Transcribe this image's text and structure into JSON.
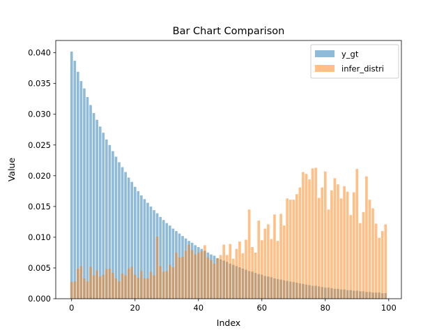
{
  "chart_data": {
    "type": "bar",
    "title": "Bar Chart Comparison",
    "xlabel": "Index",
    "ylabel": "Value",
    "xlim": [
      -5,
      104
    ],
    "ylim": [
      0,
      0.042
    ],
    "x_ticks": [
      0,
      20,
      40,
      60,
      80,
      100
    ],
    "x_tick_labels": [
      "0",
      "20",
      "40",
      "60",
      "80",
      "100"
    ],
    "y_ticks": [
      0,
      0.005,
      0.01,
      0.015,
      0.02,
      0.025,
      0.03,
      0.035,
      0.04
    ],
    "y_tick_labels": [
      "0.000",
      "0.005",
      "0.010",
      "0.015",
      "0.020",
      "0.025",
      "0.030",
      "0.035",
      "0.040"
    ],
    "grid": false,
    "legend_position": "top-right",
    "series": [
      {
        "name": "y_gt",
        "color": "#1f77b4",
        "alpha": 0.5,
        "values": [
          0.0402,
          0.0387,
          0.0369,
          0.0354,
          0.0342,
          0.0328,
          0.0315,
          0.0302,
          0.0291,
          0.028,
          0.027,
          0.0259,
          0.025,
          0.024,
          0.0231,
          0.0222,
          0.0214,
          0.0206,
          0.0197,
          0.019,
          0.0182,
          0.0175,
          0.0168,
          0.0162,
          0.0156,
          0.015,
          0.0144,
          0.0139,
          0.0133,
          0.0128,
          0.0123,
          0.0119,
          0.0114,
          0.011,
          0.0106,
          0.0102,
          0.0098,
          0.0094,
          0.0091,
          0.0087,
          0.0084,
          0.0081,
          0.0078,
          0.0075,
          0.0072,
          0.007,
          0.0066,
          0.0064,
          0.0062,
          0.006,
          0.0057,
          0.0055,
          0.0053,
          0.0051,
          0.0049,
          0.0047,
          0.0045,
          0.0044,
          0.0042,
          0.004,
          0.0039,
          0.0037,
          0.0036,
          0.0035,
          0.0033,
          0.0032,
          0.0031,
          0.003,
          0.0029,
          0.0028,
          0.0027,
          0.0026,
          0.0025,
          0.0024,
          0.0023,
          0.0022,
          0.0021,
          0.0021,
          0.002,
          0.0019,
          0.0018,
          0.0018,
          0.0017,
          0.0016,
          0.0016,
          0.0015,
          0.0015,
          0.0014,
          0.0014,
          0.0013,
          0.0013,
          0.0012,
          0.0012,
          0.0011,
          0.0011,
          0.001,
          0.001,
          0.001,
          0.0009,
          0.0009
        ]
      },
      {
        "name": "infer_distri",
        "color": "#ff7f0e",
        "alpha": 0.5,
        "values": [
          0.0027,
          0.0028,
          0.0049,
          0.0053,
          0.0033,
          0.0028,
          0.0052,
          0.0038,
          0.0046,
          0.0036,
          0.0039,
          0.0048,
          0.0049,
          0.0042,
          0.0033,
          0.0028,
          0.0041,
          0.0038,
          0.0049,
          0.0052,
          0.0039,
          0.0034,
          0.0045,
          0.0033,
          0.0033,
          0.0044,
          0.0038,
          0.0101,
          0.0053,
          0.0044,
          0.0045,
          0.0055,
          0.0051,
          0.0075,
          0.0067,
          0.0068,
          0.0078,
          0.0088,
          0.0079,
          0.0072,
          0.0075,
          0.0077,
          0.0087,
          0.0067,
          0.0063,
          0.0057,
          0.0066,
          0.0071,
          0.0088,
          0.0071,
          0.0089,
          0.0065,
          0.0081,
          0.0093,
          0.0074,
          0.0096,
          0.0145,
          0.0084,
          0.0075,
          0.0127,
          0.0095,
          0.0114,
          0.0121,
          0.0097,
          0.0137,
          0.0094,
          0.0138,
          0.0119,
          0.0163,
          0.0161,
          0.0161,
          0.017,
          0.0181,
          0.0206,
          0.0203,
          0.0194,
          0.0212,
          0.0213,
          0.0164,
          0.0181,
          0.0207,
          0.0145,
          0.0176,
          0.0196,
          0.0186,
          0.0163,
          0.0183,
          0.0174,
          0.0136,
          0.0173,
          0.0211,
          0.0123,
          0.0141,
          0.0199,
          0.0161,
          0.0147,
          0.0122,
          0.0099,
          0.011,
          0.0121
        ]
      }
    ]
  }
}
